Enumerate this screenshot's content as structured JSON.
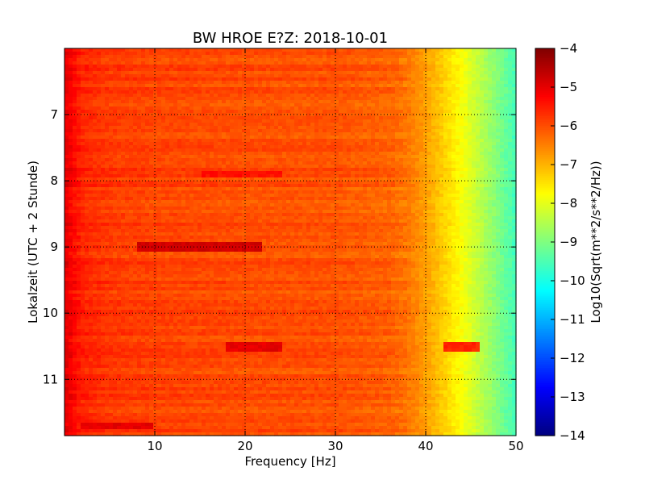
{
  "chart_data": {
    "type": "heatmap",
    "title": "BW HROE E?Z: 2018-10-01",
    "xlabel": "Frequency [Hz]",
    "ylabel": "Lokalzeit (UTC + 2 Stunde)",
    "colorbar_label": "Log10(Sqrt(m**2/s**2/Hz))",
    "xlim": [
      0,
      50
    ],
    "ylim": [
      11.85,
      6.0
    ],
    "y_inverted": true,
    "x_ticks": [
      10,
      20,
      30,
      40,
      50
    ],
    "y_ticks": [
      7,
      8,
      9,
      10,
      11
    ],
    "colorbar_range": [
      -14,
      -4
    ],
    "colorbar_ticks": [
      -4,
      -5,
      -6,
      -7,
      -8,
      -9,
      -10,
      -11,
      -12,
      -13,
      -14
    ],
    "colormap": "jet",
    "grid": true,
    "frequency_profile": {
      "x": [
        0,
        2,
        5,
        10,
        20,
        30,
        36,
        38,
        40,
        42,
        44,
        46,
        48,
        50
      ],
      "value": [
        -5.0,
        -5.6,
        -5.8,
        -5.9,
        -6.0,
        -6.05,
        -6.2,
        -6.4,
        -6.8,
        -7.3,
        -7.8,
        -8.4,
        -9.0,
        -9.6
      ]
    },
    "hotspots": [
      {
        "time": 9.0,
        "f_from": 8,
        "f_to": 22,
        "value": -4.8
      },
      {
        "time": 10.5,
        "f_from": 18,
        "f_to": 24,
        "value": -5.0
      },
      {
        "time": 10.5,
        "f_from": 42,
        "f_to": 46,
        "value": -5.6
      },
      {
        "time": 7.9,
        "f_from": 15,
        "f_to": 24,
        "value": -5.4
      },
      {
        "time": 11.7,
        "f_from": 2,
        "f_to": 10,
        "value": -5.0
      }
    ]
  }
}
